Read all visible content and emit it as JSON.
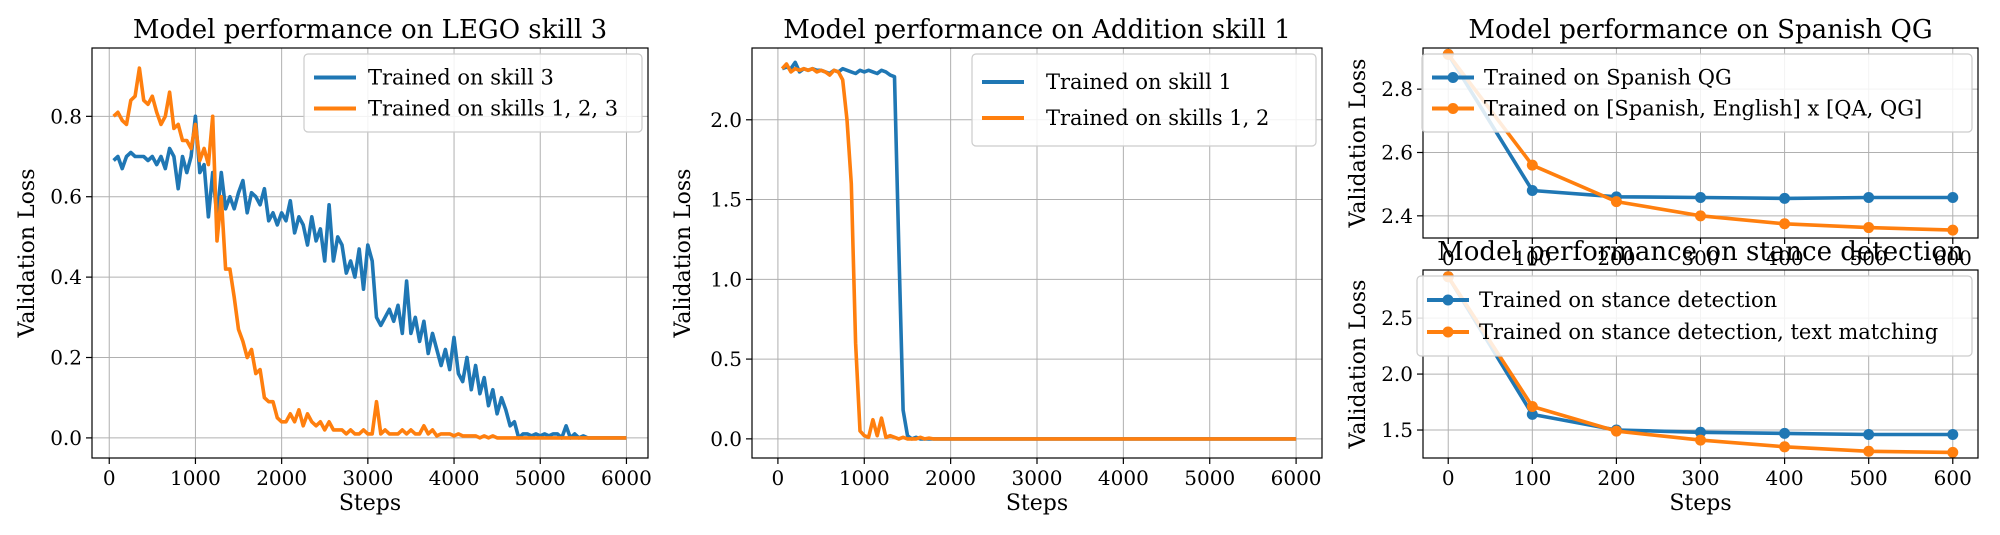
{
  "colors": {
    "blue": "#1f77b4",
    "orange": "#ff7f0e"
  },
  "chart_data": [
    {
      "type": "line",
      "title": "Model performance on LEGO skill 3",
      "xlabel": "Steps",
      "ylabel": "Validation Loss",
      "xlim": [
        -200,
        6250
      ],
      "ylim": [
        -0.05,
        0.97
      ],
      "xticks": [
        0,
        1000,
        2000,
        3000,
        4000,
        5000,
        6000
      ],
      "yticks": [
        0.0,
        0.2,
        0.4,
        0.6,
        0.8
      ],
      "ytick_labels": [
        "0.0",
        "0.2",
        "0.4",
        "0.6",
        "0.8"
      ],
      "grid": true,
      "legend": "top-right",
      "series": [
        {
          "name": "Trained on skill 3",
          "color": "#1f77b4",
          "x": [
            50,
            100,
            150,
            200,
            250,
            300,
            350,
            400,
            450,
            500,
            550,
            600,
            650,
            700,
            750,
            800,
            850,
            900,
            950,
            1000,
            1050,
            1100,
            1150,
            1200,
            1250,
            1300,
            1350,
            1400,
            1450,
            1500,
            1550,
            1600,
            1650,
            1700,
            1750,
            1800,
            1850,
            1900,
            1950,
            2000,
            2050,
            2100,
            2150,
            2200,
            2250,
            2300,
            2350,
            2400,
            2450,
            2500,
            2550,
            2600,
            2650,
            2700,
            2750,
            2800,
            2850,
            2900,
            2950,
            3000,
            3050,
            3100,
            3150,
            3200,
            3250,
            3300,
            3350,
            3400,
            3450,
            3500,
            3550,
            3600,
            3650,
            3700,
            3750,
            3800,
            3850,
            3900,
            3950,
            4000,
            4050,
            4100,
            4150,
            4200,
            4250,
            4300,
            4350,
            4400,
            4450,
            4500,
            4550,
            4600,
            4650,
            4700,
            4750,
            4800,
            4850,
            4900,
            4950,
            5000,
            5050,
            5100,
            5150,
            5200,
            5250,
            5300,
            5350,
            5400,
            5450,
            5500,
            5550,
            5600,
            5650,
            5700,
            5750,
            5800,
            5850,
            5900,
            5950,
            6000
          ],
          "y": [
            0.69,
            0.7,
            0.67,
            0.7,
            0.71,
            0.7,
            0.7,
            0.7,
            0.69,
            0.7,
            0.68,
            0.7,
            0.67,
            0.72,
            0.7,
            0.62,
            0.7,
            0.66,
            0.7,
            0.8,
            0.66,
            0.68,
            0.55,
            0.66,
            0.55,
            0.66,
            0.57,
            0.6,
            0.57,
            0.61,
            0.64,
            0.56,
            0.61,
            0.6,
            0.58,
            0.62,
            0.54,
            0.56,
            0.53,
            0.56,
            0.54,
            0.59,
            0.51,
            0.55,
            0.53,
            0.48,
            0.55,
            0.49,
            0.52,
            0.44,
            0.58,
            0.44,
            0.5,
            0.48,
            0.41,
            0.44,
            0.4,
            0.47,
            0.37,
            0.48,
            0.44,
            0.3,
            0.28,
            0.3,
            0.32,
            0.29,
            0.33,
            0.26,
            0.39,
            0.26,
            0.3,
            0.24,
            0.29,
            0.21,
            0.26,
            0.22,
            0.18,
            0.22,
            0.17,
            0.25,
            0.16,
            0.14,
            0.2,
            0.12,
            0.18,
            0.11,
            0.15,
            0.08,
            0.12,
            0.06,
            0.1,
            0.07,
            0.03,
            0.04,
            0.0,
            0.01,
            0.01,
            0.005,
            0.01,
            0.005,
            0.01,
            0.005,
            0.01,
            0.01,
            0.0,
            0.03,
            0.0,
            0.01,
            0.0,
            0.005,
            0.0,
            0.0,
            0.0,
            0.0,
            0.0,
            0.0,
            0.0,
            0.0,
            0.0,
            0.0
          ]
        },
        {
          "name": "Trained on skills 1, 2, 3",
          "color": "#ff7f0e",
          "x": [
            50,
            100,
            150,
            200,
            250,
            300,
            350,
            400,
            450,
            500,
            550,
            600,
            650,
            700,
            750,
            800,
            850,
            900,
            950,
            1000,
            1050,
            1100,
            1150,
            1200,
            1250,
            1300,
            1350,
            1400,
            1450,
            1500,
            1550,
            1600,
            1650,
            1700,
            1750,
            1800,
            1850,
            1900,
            1950,
            2000,
            2050,
            2100,
            2150,
            2200,
            2250,
            2300,
            2350,
            2400,
            2450,
            2500,
            2550,
            2600,
            2650,
            2700,
            2750,
            2800,
            2850,
            2900,
            2950,
            3000,
            3050,
            3100,
            3150,
            3200,
            3250,
            3300,
            3350,
            3400,
            3450,
            3500,
            3550,
            3600,
            3650,
            3700,
            3750,
            3800,
            3850,
            3900,
            3950,
            4000,
            4050,
            4100,
            4150,
            4200,
            4250,
            4300,
            4350,
            4400,
            4450,
            4500,
            4550,
            4600,
            4650,
            4700,
            4750,
            4800,
            4850,
            4900,
            4950,
            5000,
            5050,
            5100,
            5150,
            5200,
            5250,
            5300,
            5350,
            5400,
            5450,
            5500,
            5550,
            5600,
            5650,
            5700,
            5750,
            5800,
            5850,
            5900,
            5950,
            6000
          ],
          "y": [
            0.8,
            0.81,
            0.79,
            0.78,
            0.84,
            0.85,
            0.92,
            0.84,
            0.83,
            0.85,
            0.81,
            0.78,
            0.8,
            0.86,
            0.77,
            0.78,
            0.74,
            0.74,
            0.72,
            0.78,
            0.69,
            0.72,
            0.68,
            0.8,
            0.49,
            0.6,
            0.42,
            0.42,
            0.35,
            0.27,
            0.24,
            0.2,
            0.22,
            0.16,
            0.17,
            0.1,
            0.09,
            0.09,
            0.05,
            0.04,
            0.04,
            0.06,
            0.04,
            0.07,
            0.03,
            0.06,
            0.04,
            0.03,
            0.04,
            0.02,
            0.04,
            0.02,
            0.02,
            0.02,
            0.01,
            0.02,
            0.01,
            0.01,
            0.02,
            0.01,
            0.01,
            0.09,
            0.01,
            0.02,
            0.01,
            0.01,
            0.01,
            0.02,
            0.01,
            0.02,
            0.01,
            0.01,
            0.03,
            0.01,
            0.02,
            0.005,
            0.01,
            0.01,
            0.01,
            0.005,
            0.01,
            0.005,
            0.005,
            0.005,
            0.005,
            0.0,
            0.005,
            0.0,
            0.005,
            0.0,
            0.0,
            0.0,
            0.0,
            0.0,
            0.0,
            0.0,
            0.0,
            0.0,
            0.0,
            0.0,
            0.0,
            0.0,
            0.0,
            0.0,
            0.0,
            0.0,
            0.0,
            0.0,
            0.0,
            0.0,
            0.0,
            0.0,
            0.0,
            0.0,
            0.0,
            0.0,
            0.0,
            0.0,
            0.0,
            0.0
          ]
        }
      ]
    },
    {
      "type": "line",
      "title": "Model performance on Addition skill 1",
      "xlabel": "Steps",
      "ylabel": "Validation Loss",
      "xlim": [
        -300,
        6300
      ],
      "ylim": [
        -0.12,
        2.45
      ],
      "xticks": [
        0,
        1000,
        2000,
        3000,
        4000,
        5000,
        6000
      ],
      "yticks": [
        0.0,
        0.5,
        1.0,
        1.5,
        2.0
      ],
      "ytick_labels": [
        "0.0",
        "0.5",
        "1.0",
        "1.5",
        "2.0"
      ],
      "grid": true,
      "legend": "top-right",
      "series": [
        {
          "name": "Trained on skill 1",
          "color": "#1f77b4",
          "x": [
            50,
            100,
            150,
            200,
            250,
            300,
            350,
            400,
            450,
            500,
            550,
            600,
            650,
            700,
            750,
            800,
            850,
            900,
            950,
            1000,
            1050,
            1100,
            1150,
            1200,
            1250,
            1300,
            1350,
            1400,
            1450,
            1500,
            1550,
            1600,
            1650,
            1700,
            1750,
            1800,
            1850,
            1900,
            1950,
            2000,
            2500,
            3000,
            3500,
            4000,
            4500,
            5000,
            5500,
            6000
          ],
          "y": [
            2.32,
            2.33,
            2.32,
            2.36,
            2.3,
            2.32,
            2.31,
            2.32,
            2.31,
            2.31,
            2.3,
            2.29,
            2.31,
            2.3,
            2.32,
            2.31,
            2.3,
            2.29,
            2.31,
            2.3,
            2.31,
            2.3,
            2.29,
            2.31,
            2.3,
            2.28,
            2.27,
            1.2,
            0.18,
            0.02,
            0.0,
            0.01,
            0.0,
            0.0,
            0.0,
            0.0,
            0.0,
            0.0,
            0.0,
            0.0,
            0.0,
            0.0,
            0.0,
            0.0,
            0.0,
            0.0,
            0.0,
            0.0
          ]
        },
        {
          "name": "Trained on skills 1, 2",
          "color": "#ff7f0e",
          "x": [
            50,
            100,
            150,
            200,
            250,
            300,
            350,
            400,
            450,
            500,
            550,
            600,
            650,
            700,
            750,
            800,
            850,
            900,
            950,
            1000,
            1050,
            1100,
            1150,
            1200,
            1250,
            1300,
            1350,
            1400,
            1450,
            1500,
            1550,
            1600,
            1650,
            1700,
            1750,
            1800,
            1850,
            1900,
            1950,
            2000,
            2500,
            3000,
            3500,
            4000,
            4500,
            5000,
            5500,
            6000
          ],
          "y": [
            2.32,
            2.35,
            2.3,
            2.32,
            2.31,
            2.32,
            2.31,
            2.32,
            2.3,
            2.31,
            2.3,
            2.28,
            2.31,
            2.3,
            2.25,
            2.0,
            1.6,
            0.6,
            0.05,
            0.02,
            0.01,
            0.12,
            0.02,
            0.13,
            0.01,
            0.02,
            0.01,
            0.0,
            0.01,
            0.0,
            0.0,
            0.0,
            0.01,
            0.0,
            0.005,
            0.0,
            0.0,
            0.0,
            0.0,
            0.0,
            0.0,
            0.0,
            0.0,
            0.0,
            0.0,
            0.0,
            0.0,
            0.0
          ]
        }
      ]
    },
    {
      "type": "line",
      "title": "Model performance on Spanish QG",
      "xlabel": "",
      "ylabel": "Validation Loss",
      "xlim": [
        -30,
        630
      ],
      "ylim": [
        2.33,
        2.93
      ],
      "xticks": [
        0,
        100,
        200,
        300,
        400,
        500,
        600
      ],
      "yticks": [
        2.4,
        2.6,
        2.8
      ],
      "ytick_labels": [
        "2.4",
        "2.6",
        "2.8"
      ],
      "grid": true,
      "legend": "top-right",
      "markers": true,
      "series": [
        {
          "name": "Trained on Spanish QG",
          "color": "#1f77b4",
          "x": [
            0,
            100,
            200,
            300,
            400,
            500,
            600
          ],
          "y": [
            2.91,
            2.48,
            2.46,
            2.458,
            2.455,
            2.458,
            2.458
          ]
        },
        {
          "name": "Trained on [Spanish, English] x [QA, QG]",
          "color": "#ff7f0e",
          "x": [
            0,
            100,
            200,
            300,
            400,
            500,
            600
          ],
          "y": [
            2.91,
            2.56,
            2.445,
            2.4,
            2.375,
            2.363,
            2.355
          ]
        }
      ]
    },
    {
      "type": "line",
      "title": "Model performance on stance detection",
      "xlabel": "Steps",
      "ylabel": "Validation Loss",
      "xlim": [
        -30,
        630
      ],
      "ylim": [
        1.25,
        2.93
      ],
      "xticks": [
        0,
        100,
        200,
        300,
        400,
        500,
        600
      ],
      "yticks": [
        1.5,
        2.0,
        2.5
      ],
      "ytick_labels": [
        "1.5",
        "2.0",
        "2.5"
      ],
      "grid": true,
      "legend": "top-right",
      "markers": true,
      "series": [
        {
          "name": "Trained on stance detection",
          "color": "#1f77b4",
          "x": [
            0,
            100,
            200,
            300,
            400,
            500,
            600
          ],
          "y": [
            2.87,
            1.64,
            1.5,
            1.48,
            1.47,
            1.46,
            1.46
          ]
        },
        {
          "name": "Trained on stance detection, text matching",
          "color": "#ff7f0e",
          "x": [
            0,
            100,
            200,
            300,
            400,
            500,
            600
          ],
          "y": [
            2.87,
            1.71,
            1.49,
            1.41,
            1.35,
            1.31,
            1.3
          ]
        }
      ]
    }
  ]
}
